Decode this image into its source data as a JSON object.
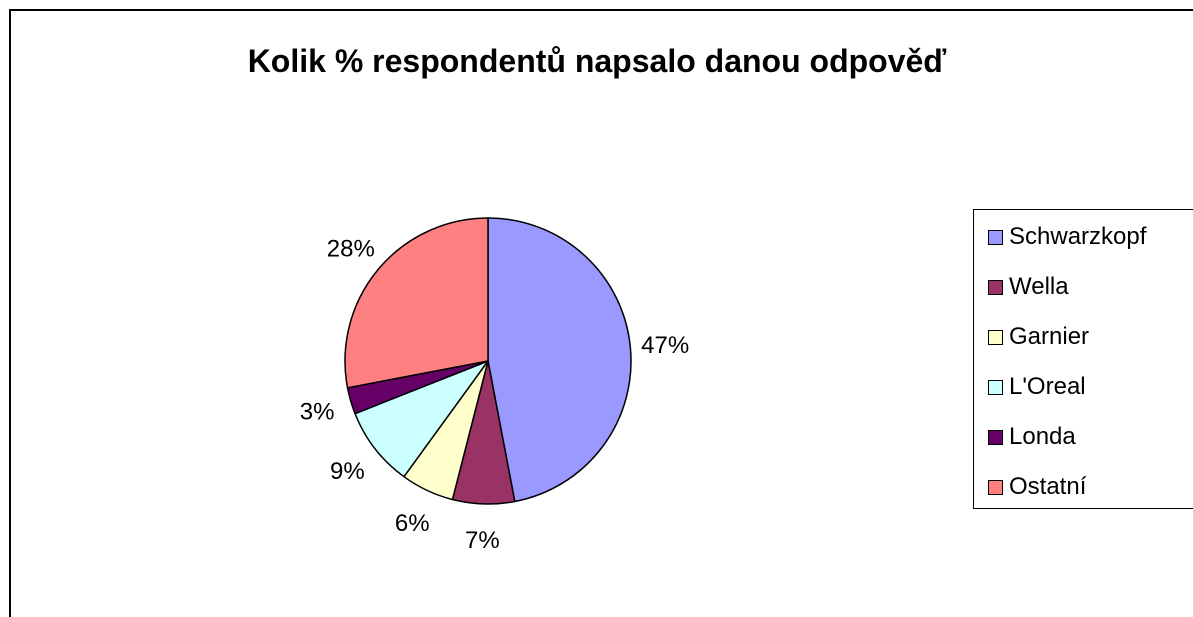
{
  "chart_data": {
    "type": "pie",
    "title": "Kolik % respondentů napsalo danou odpověď",
    "categories": [
      "Schwarzkopf",
      "Wella",
      "Garnier",
      "L'Oreal",
      "Londa",
      "Ostatní"
    ],
    "values": [
      47,
      7,
      6,
      9,
      3,
      28
    ],
    "labels": [
      "47%",
      "7%",
      "6%",
      "9%",
      "3%",
      "28%"
    ],
    "colors": [
      "#9999FF",
      "#993366",
      "#FFFFCC",
      "#CCFFFF",
      "#660066",
      "#FF8080"
    ],
    "legend_position": "right",
    "start_angle": "12 o'clock",
    "direction": "clockwise"
  }
}
